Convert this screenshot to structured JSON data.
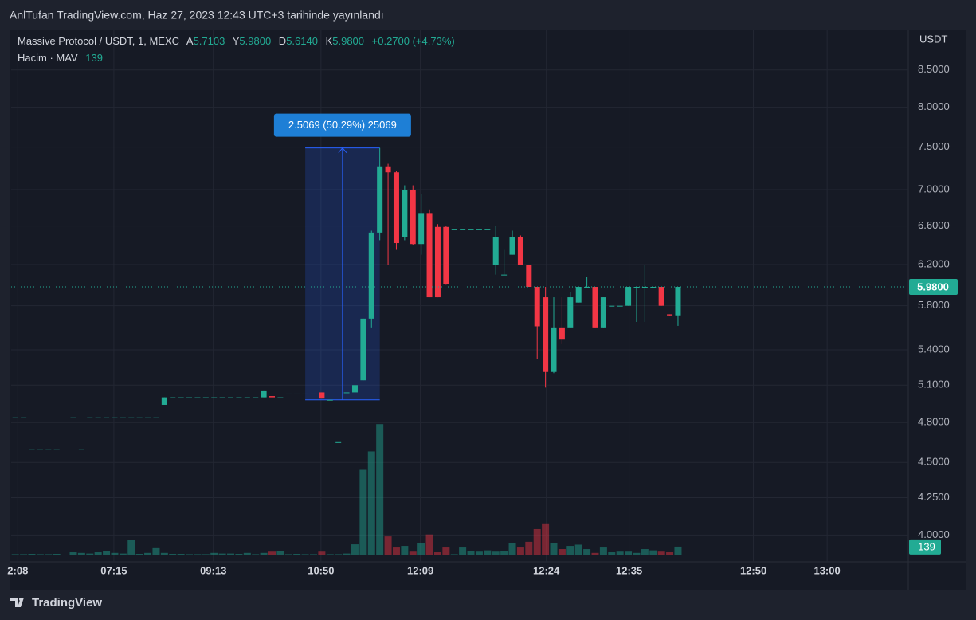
{
  "header": "AnlTufan TradingView.com, Haz 27, 2023 12:43 UTC+3 tarihinde yayınlandı",
  "footer": "TradingView",
  "chart_data": {
    "type": "candlestick",
    "symbol": "Massive Protocol / USDT, 1, MEXC",
    "ohlc_legend": [
      {
        "label": "A",
        "value": "5.7103"
      },
      {
        "label": "Y",
        "value": "5.9800"
      },
      {
        "label": "D",
        "value": "5.6140"
      },
      {
        "label": "K",
        "value": "5.9800"
      }
    ],
    "change": "+0.2700 (+4.73%)",
    "volume_legend": "Hacim · MAV",
    "y_axis_label": "USDT",
    "log_scale": true,
    "grid": true,
    "up_color": "#22ab94",
    "down_color": "#f23645",
    "ylim": [
      3.87,
      9.04
    ],
    "yticks": [
      {
        "value": 4.0,
        "label": "4.0000"
      },
      {
        "value": 4.25,
        "label": "4.2500"
      },
      {
        "value": 4.5,
        "label": "4.5000"
      },
      {
        "value": 4.8,
        "label": "4.8000"
      },
      {
        "value": 5.1,
        "label": "5.1000"
      },
      {
        "value": 5.4,
        "label": "5.4000"
      },
      {
        "value": 5.8,
        "label": "5.8000"
      },
      {
        "value": 6.2,
        "label": "6.2000"
      },
      {
        "value": 6.6,
        "label": "6.6000"
      },
      {
        "value": 7.0,
        "label": "7.0000"
      },
      {
        "value": 7.5,
        "label": "7.5000"
      },
      {
        "value": 8.0,
        "label": "8.0000"
      },
      {
        "value": 8.5,
        "label": "8.5000"
      }
    ],
    "xlim": [
      -0.5,
      107.8
    ],
    "xticks": [
      {
        "value": 0.3,
        "label": "2:08"
      },
      {
        "value": 11.9,
        "label": "07:15"
      },
      {
        "value": 23.9,
        "label": "09:13"
      },
      {
        "value": 36.9,
        "label": "10:50"
      },
      {
        "value": 48.9,
        "label": "12:09"
      },
      {
        "value": 64.1,
        "label": "12:24"
      },
      {
        "value": 74.1,
        "label": "12:35"
      },
      {
        "value": 89.1,
        "label": "12:50"
      },
      {
        "value": 98.0,
        "label": "13:00"
      }
    ],
    "open": [
      4.84,
      4.84,
      4.6,
      4.6,
      4.6,
      4.6,
      null,
      4.84,
      4.6,
      4.84,
      4.84,
      4.84,
      4.84,
      4.84,
      4.84,
      4.84,
      4.84,
      4.84,
      4.94,
      5.0,
      5.0,
      5.0,
      5.0,
      5.0,
      5.0,
      5.0,
      5.0,
      5.0,
      5.0,
      5.0,
      5.0,
      5.01,
      5.0,
      5.03,
      5.03,
      5.03,
      5.03,
      5.04,
      4.98,
      4.65,
      5.04,
      5.04,
      5.14,
      5.68,
      6.53,
      7.27,
      7.2,
      6.48,
      7.0,
      6.41,
      6.74,
      6.59,
      6.59,
      6.57,
      6.57,
      6.57,
      6.57,
      6.57,
      6.2,
      6.1,
      6.3,
      6.48,
      6.2,
      5.98,
      5.88,
      5.21,
      5.6,
      5.6,
      5.83,
      5.98,
      5.98,
      5.6,
      5.8,
      5.8,
      5.8,
      5.98,
      5.98,
      5.98,
      5.98,
      5.72,
      5.7103
    ],
    "high": [
      4.84,
      4.84,
      4.6,
      4.6,
      4.6,
      4.6,
      null,
      4.84,
      4.6,
      4.84,
      4.84,
      4.84,
      4.84,
      4.84,
      4.84,
      4.84,
      4.84,
      4.84,
      5.0,
      5.0,
      5.0,
      5.0,
      5.0,
      5.0,
      5.0,
      5.0,
      5.0,
      5.0,
      5.0,
      5.0,
      5.05,
      5.01,
      5.0,
      5.03,
      5.03,
      5.03,
      5.03,
      5.04,
      4.98,
      4.65,
      5.04,
      5.1,
      5.68,
      6.55,
      7.49,
      7.3,
      7.22,
      7.05,
      7.05,
      6.95,
      6.78,
      6.62,
      6.6,
      6.57,
      6.57,
      6.57,
      6.57,
      6.57,
      6.6,
      6.35,
      6.55,
      6.5,
      6.2,
      5.98,
      5.98,
      5.88,
      5.88,
      5.93,
      5.98,
      6.08,
      5.98,
      5.88,
      5.8,
      5.8,
      5.98,
      5.98,
      6.2,
      5.98,
      5.98,
      5.72,
      5.98
    ],
    "low": [
      4.84,
      4.84,
      4.6,
      4.6,
      4.6,
      4.6,
      null,
      4.84,
      4.6,
      4.84,
      4.84,
      4.84,
      4.84,
      4.84,
      4.84,
      4.84,
      4.84,
      4.84,
      4.94,
      5.0,
      5.0,
      5.0,
      5.0,
      5.0,
      5.0,
      5.0,
      5.0,
      5.0,
      5.0,
      5.0,
      5.0,
      5.0,
      5.0,
      5.03,
      5.03,
      5.03,
      5.03,
      4.99,
      4.98,
      4.65,
      5.04,
      5.04,
      5.14,
      5.6,
      6.45,
      6.2,
      6.35,
      6.45,
      6.4,
      6.3,
      5.88,
      5.88,
      6.0,
      6.57,
      6.57,
      6.57,
      6.57,
      6.57,
      6.1,
      6.1,
      6.3,
      6.2,
      5.98,
      5.32,
      5.08,
      5.2,
      5.45,
      5.6,
      5.83,
      5.98,
      5.6,
      5.6,
      5.8,
      5.8,
      5.8,
      5.65,
      5.65,
      5.98,
      5.8,
      5.71,
      5.614
    ],
    "close": [
      4.84,
      4.84,
      4.6,
      4.6,
      4.6,
      4.6,
      null,
      4.84,
      4.6,
      4.84,
      4.84,
      4.84,
      4.84,
      4.84,
      4.84,
      4.84,
      4.84,
      4.84,
      5.0,
      5.0,
      5.0,
      5.0,
      5.0,
      5.0,
      5.0,
      5.0,
      5.0,
      5.0,
      5.0,
      5.0,
      5.05,
      5.0,
      5.0,
      5.03,
      5.03,
      5.03,
      5.03,
      4.99,
      4.98,
      4.65,
      5.04,
      5.1,
      5.68,
      6.53,
      7.27,
      7.2,
      6.42,
      7.0,
      6.41,
      6.74,
      5.88,
      5.88,
      6.01,
      6.57,
      6.57,
      6.57,
      6.57,
      6.57,
      6.48,
      6.1,
      6.48,
      6.2,
      5.98,
      5.61,
      5.21,
      5.6,
      5.49,
      5.88,
      5.98,
      5.98,
      5.6,
      5.88,
      5.8,
      5.8,
      5.98,
      5.98,
      5.98,
      5.98,
      5.8,
      5.71,
      5.98
    ],
    "volumes": [
      20,
      20,
      25,
      20,
      20,
      25,
      null,
      50,
      40,
      30,
      50,
      75,
      40,
      30,
      250,
      25,
      40,
      115,
      40,
      25,
      25,
      20,
      20,
      20,
      40,
      30,
      30,
      25,
      40,
      20,
      40,
      60,
      75,
      20,
      25,
      20,
      20,
      60,
      20,
      20,
      30,
      175,
      1350,
      1640,
      2070,
      300,
      125,
      150,
      60,
      200,
      330,
      50,
      125,
      20,
      125,
      75,
      60,
      80,
      60,
      70,
      200,
      125,
      215,
      415,
      505,
      190,
      100,
      150,
      170,
      100,
      40,
      125,
      50,
      60,
      60,
      40,
      100,
      80,
      60,
      50,
      139
    ],
    "volume_ylim": [
      0,
      2600
    ],
    "last_price": {
      "value": 5.98,
      "label": "5.9800"
    },
    "measure": {
      "from": 4.98,
      "to": 7.49,
      "x_range": [
        35,
        44
      ],
      "label": "2.5069 (50.29%) 25069"
    }
  }
}
